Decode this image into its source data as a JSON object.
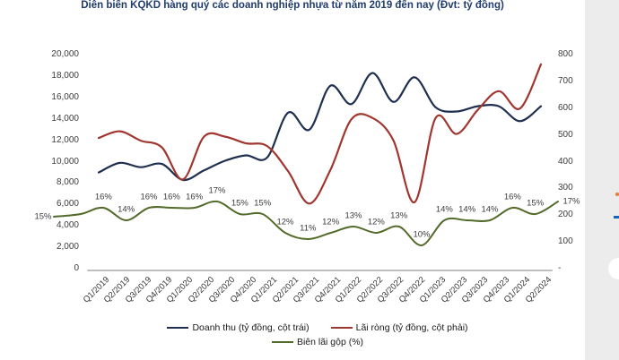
{
  "page": {
    "strip_color": "#ececec"
  },
  "chart_data": {
    "type": "line",
    "title": "Diễn biến KQKD hàng quý các doanh nghiệp nhựa từ năm 2019 đến nay (Đvt: tỷ đồng)",
    "title_color": "#1f3c6d",
    "grid": false,
    "smooth": true,
    "legend_position": "bottom",
    "categories": [
      "Q1/2019",
      "Q2/2019",
      "Q3/2019",
      "Q4/2019",
      "Q1/2020",
      "Q2/2020",
      "Q3/2020",
      "Q4/2020",
      "Q1/2021",
      "Q2/2021",
      "Q3/2021",
      "Q4/2021",
      "Q1/2022",
      "Q2/2022",
      "Q3/2022",
      "Q4/2022",
      "Q1/2023",
      "Q2/2023",
      "Q3/2023",
      "Q4/2023",
      "Q1/2024",
      "Q2/2024"
    ],
    "left_axis": {
      "ticks": [
        "20,000",
        "18,000",
        "16,000",
        "14,000",
        "12,000",
        "10,000",
        "8,000",
        "6,000",
        "4,000",
        "2,000",
        "0"
      ],
      "tick_values": [
        20000,
        18000,
        16000,
        14000,
        12000,
        10000,
        8000,
        6000,
        4000,
        2000,
        0
      ],
      "min": 0,
      "max": 20000
    },
    "right_axis": {
      "ticks": [
        "800",
        "700",
        "600",
        "500",
        "400",
        "300",
        "200",
        "100",
        "-"
      ],
      "tick_values": [
        800,
        700,
        600,
        500,
        400,
        300,
        200,
        100,
        0
      ],
      "min": 0,
      "max": 800
    },
    "series": [
      {
        "name": "Doanh thu (tỷ đồng, cột trái)",
        "axis": "left",
        "color": "#1e2f4f",
        "values": [
          8900,
          9800,
          9400,
          9700,
          8200,
          9100,
          10000,
          10500,
          10300,
          14500,
          12900,
          17000,
          15300,
          18200,
          15500,
          17800,
          15000,
          14600,
          15100,
          15100,
          13700,
          15100
        ]
      },
      {
        "name": "Lãi ròng (tỷ đồng, cột phải)",
        "axis": "right",
        "color": "#a0362f",
        "values": [
          485,
          510,
          475,
          450,
          330,
          490,
          490,
          465,
          455,
          360,
          240,
          365,
          555,
          560,
          475,
          245,
          560,
          500,
          590,
          660,
          595,
          760
        ]
      },
      {
        "name": "Biên lãi gộp (%)",
        "axis": "percent",
        "color": "#526b2a",
        "values": [
          15,
          16,
          14,
          16,
          16,
          16,
          17,
          15,
          15,
          12,
          11,
          12,
          13,
          12,
          13,
          10,
          14,
          14,
          14,
          16,
          15,
          17
        ],
        "labels": [
          "15%",
          "16%",
          "14%",
          "16%",
          "16%",
          "16%",
          "17%",
          "15%",
          "15%",
          "12%",
          "11%",
          "12%",
          "13%",
          "12%",
          "13%",
          "10%",
          "14%",
          "14%",
          "14%",
          "16%",
          "15%",
          "17%"
        ]
      }
    ],
    "axis_line_color": "#bfbfbf"
  }
}
